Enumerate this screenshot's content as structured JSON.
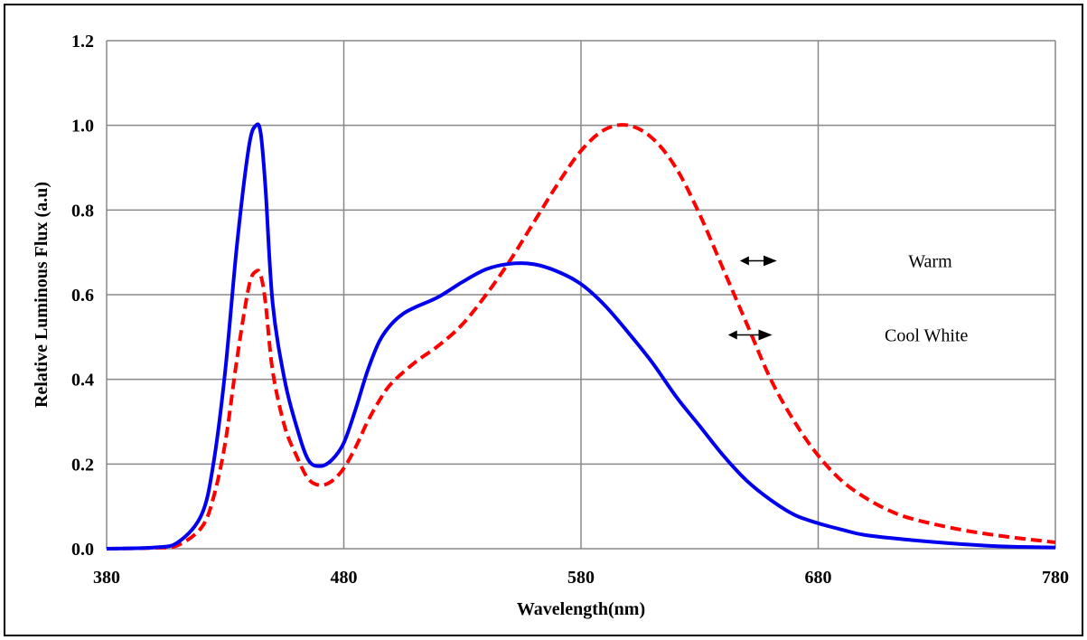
{
  "chart_data": {
    "type": "line",
    "title": "",
    "xlabel": "Wavelength(nm)",
    "ylabel": "Relative Luminous Flux (a.u)",
    "xlim": [
      380,
      780
    ],
    "ylim": [
      0,
      1.2
    ],
    "x_ticks": [
      380,
      480,
      580,
      680,
      780
    ],
    "x_tick_labels": [
      "380",
      "480",
      "580",
      "680",
      "780"
    ],
    "y_ticks": [
      0,
      0.2,
      0.4,
      0.6,
      0.8,
      1.0,
      1.2
    ],
    "y_tick_labels": [
      "0.0",
      "0.2",
      "0.4",
      "0.6",
      "0.8",
      "1.0",
      "1.2"
    ],
    "grid": true,
    "series": [
      {
        "name": "Cool White",
        "color": "#0000ee",
        "style": "solid",
        "x": [
          380,
          400,
          410,
          420,
          425,
          430,
          435,
          440,
          443,
          445,
          447,
          450,
          455,
          460,
          465,
          470,
          475,
          480,
          485,
          490,
          495,
          500,
          505,
          510,
          520,
          530,
          540,
          550,
          560,
          570,
          580,
          590,
          600,
          610,
          620,
          630,
          640,
          650,
          660,
          670,
          680,
          690,
          700,
          720,
          740,
          760,
          780
        ],
        "y": [
          0.0,
          0.003,
          0.015,
          0.08,
          0.2,
          0.42,
          0.72,
          0.95,
          1.0,
          0.98,
          0.85,
          0.58,
          0.4,
          0.29,
          0.21,
          0.195,
          0.21,
          0.25,
          0.33,
          0.42,
          0.49,
          0.53,
          0.555,
          0.57,
          0.595,
          0.63,
          0.66,
          0.673,
          0.672,
          0.655,
          0.625,
          0.575,
          0.51,
          0.44,
          0.36,
          0.29,
          0.22,
          0.16,
          0.115,
          0.08,
          0.06,
          0.045,
          0.032,
          0.02,
          0.011,
          0.005,
          0.003
        ]
      },
      {
        "name": "Warm",
        "color": "#ff0000",
        "style": "dashed",
        "x": [
          380,
          400,
          410,
          420,
          425,
          430,
          435,
          440,
          443,
          445,
          447,
          450,
          455,
          460,
          465,
          470,
          475,
          480,
          485,
          490,
          495,
          500,
          510,
          520,
          530,
          540,
          550,
          560,
          570,
          580,
          590,
          600,
          610,
          620,
          630,
          640,
          650,
          660,
          670,
          680,
          690,
          700,
          710,
          720,
          740,
          760,
          780
        ],
        "y": [
          0.0,
          0.002,
          0.008,
          0.05,
          0.12,
          0.25,
          0.45,
          0.62,
          0.655,
          0.645,
          0.58,
          0.42,
          0.29,
          0.22,
          0.165,
          0.15,
          0.16,
          0.19,
          0.24,
          0.3,
          0.35,
          0.39,
          0.44,
          0.48,
          0.53,
          0.6,
          0.68,
          0.77,
          0.86,
          0.94,
          0.99,
          1.0,
          0.97,
          0.9,
          0.79,
          0.66,
          0.53,
          0.4,
          0.3,
          0.22,
          0.16,
          0.12,
          0.09,
          0.07,
          0.045,
          0.028,
          0.015
        ]
      }
    ],
    "annotations": [
      {
        "text": "Warm",
        "x": 718,
        "y": 0.665,
        "arrow_from_x": 662,
        "arrow_to_x": 647,
        "arrow_y": 0.68
      },
      {
        "text": "Cool White",
        "x": 708,
        "y": 0.49,
        "arrow_from_x": 660,
        "arrow_to_x": 642,
        "arrow_y": 0.505
      }
    ]
  }
}
